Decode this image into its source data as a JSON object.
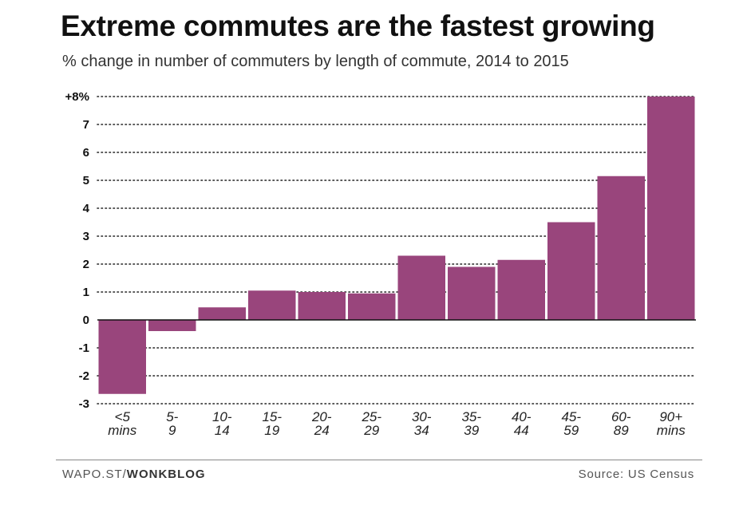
{
  "header": {
    "title": "Extreme commutes are the fastest growing",
    "subtitle": "% change in number of commuters by length of commute, 2014 to 2015"
  },
  "footer": {
    "source_prefix": "WAPO.ST/",
    "source_brand": "WONKBLOG",
    "credit": "Source: US Census"
  },
  "colors": {
    "bar": "#99457c",
    "grid": "#222222"
  },
  "chart_data": {
    "type": "bar",
    "title": "Extreme commutes are the fastest growing",
    "subtitle": "% change in number of commuters by length of commute, 2014 to 2015",
    "categories": [
      [
        "<5",
        "mins"
      ],
      [
        "5-",
        "9"
      ],
      [
        "10-",
        "14"
      ],
      [
        "15-",
        "19"
      ],
      [
        "20-",
        "24"
      ],
      [
        "25-",
        "29"
      ],
      [
        "30-",
        "34"
      ],
      [
        "35-",
        "39"
      ],
      [
        "40-",
        "44"
      ],
      [
        "45-",
        "59"
      ],
      [
        "60-",
        "89"
      ],
      [
        "90+",
        "mins"
      ]
    ],
    "values": [
      -2.65,
      -0.4,
      0.45,
      1.05,
      1.0,
      0.95,
      2.3,
      1.9,
      2.15,
      3.5,
      5.15,
      8.0
    ],
    "ylim": [
      -3,
      8
    ],
    "yticks": [
      8,
      7,
      6,
      5,
      4,
      3,
      2,
      1,
      0,
      -1,
      -2,
      -3
    ],
    "ytick_labels": [
      "+8%",
      "7",
      "6",
      "5",
      "4",
      "3",
      "2",
      "1",
      "0",
      "-1",
      "-2",
      "-3"
    ],
    "xlabel": "",
    "ylabel": "",
    "grid": true
  }
}
